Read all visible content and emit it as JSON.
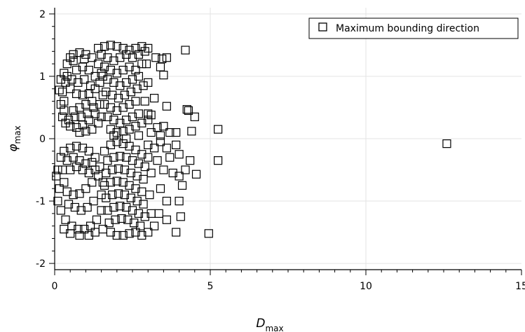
{
  "chart_data": {
    "type": "scatter",
    "xlabel": "D",
    "xlabel_sub": "max",
    "ylabel": "φ",
    "ylabel_sub": "max",
    "xlim": [
      0,
      15
    ],
    "ylim": [
      -2.1,
      2.1
    ],
    "x_ticks": [
      0,
      5,
      10,
      15
    ],
    "y_ticks": [
      -2,
      -1,
      0,
      1,
      2
    ],
    "grid": true,
    "legend_position": "top-right",
    "marker": "open-square",
    "series": [
      {
        "name": "Maximum bounding direction",
        "points": [
          [
            0.3,
            1.05
          ],
          [
            0.4,
            1.2
          ],
          [
            0.5,
            1.3
          ],
          [
            0.6,
            1.35
          ],
          [
            0.8,
            1.38
          ],
          [
            1.0,
            1.35
          ],
          [
            1.2,
            1.3
          ],
          [
            1.4,
            1.2
          ],
          [
            1.5,
            1.05
          ],
          [
            1.45,
            0.9
          ],
          [
            1.3,
            0.8
          ],
          [
            1.1,
            0.72
          ],
          [
            0.9,
            0.7
          ],
          [
            0.7,
            0.72
          ],
          [
            0.5,
            0.8
          ],
          [
            0.35,
            0.9
          ],
          [
            0.25,
            0.75
          ],
          [
            0.2,
            0.55
          ],
          [
            0.25,
            0.35
          ],
          [
            0.35,
            0.25
          ],
          [
            0.5,
            0.2
          ],
          [
            0.7,
            0.18
          ],
          [
            0.9,
            0.22
          ],
          [
            1.1,
            0.3
          ],
          [
            1.3,
            0.4
          ],
          [
            1.45,
            0.55
          ],
          [
            0.3,
            0.6
          ],
          [
            0.6,
            0.45
          ],
          [
            0.8,
            0.5
          ],
          [
            1.0,
            0.55
          ],
          [
            1.2,
            0.6
          ],
          [
            0.4,
            1.0
          ],
          [
            0.7,
            1.1
          ],
          [
            0.9,
            1.15
          ],
          [
            1.1,
            1.1
          ],
          [
            1.3,
            1.0
          ],
          [
            0.55,
            0.95
          ],
          [
            0.75,
            0.9
          ],
          [
            0.95,
            0.95
          ],
          [
            1.15,
            0.85
          ],
          [
            0.45,
            0.3
          ],
          [
            0.65,
            0.35
          ],
          [
            0.85,
            0.35
          ],
          [
            1.05,
            0.4
          ],
          [
            1.25,
            0.5
          ],
          [
            0.3,
            0.45
          ],
          [
            0.2,
            0.95
          ],
          [
            0.15,
            0.78
          ],
          [
            1.55,
            0.7
          ],
          [
            1.5,
            0.35
          ],
          [
            1.4,
            0.25
          ],
          [
            1.2,
            0.15
          ],
          [
            1.0,
            0.12
          ],
          [
            0.8,
            0.1
          ],
          [
            0.6,
            1.25
          ],
          [
            0.95,
            1.28
          ],
          [
            1.4,
            1.45
          ],
          [
            1.6,
            1.48
          ],
          [
            1.8,
            1.5
          ],
          [
            2.0,
            1.48
          ],
          [
            2.2,
            1.45
          ],
          [
            2.4,
            1.42
          ],
          [
            2.6,
            1.45
          ],
          [
            2.8,
            1.48
          ],
          [
            1.5,
            1.35
          ],
          [
            1.7,
            1.3
          ],
          [
            1.9,
            1.25
          ],
          [
            2.1,
            1.3
          ],
          [
            2.3,
            1.35
          ],
          [
            2.5,
            1.3
          ],
          [
            2.7,
            1.35
          ],
          [
            2.9,
            1.4
          ],
          [
            1.6,
            1.15
          ],
          [
            1.8,
            1.1
          ],
          [
            2.0,
            1.05
          ],
          [
            2.2,
            1.1
          ],
          [
            2.4,
            1.15
          ],
          [
            2.6,
            1.1
          ],
          [
            2.8,
            1.2
          ],
          [
            3.0,
            1.45
          ],
          [
            1.7,
            0.95
          ],
          [
            1.9,
            0.9
          ],
          [
            2.1,
            0.85
          ],
          [
            2.3,
            0.9
          ],
          [
            2.5,
            0.95
          ],
          [
            2.7,
            1.0
          ],
          [
            1.65,
            0.75
          ],
          [
            1.85,
            0.7
          ],
          [
            2.05,
            0.65
          ],
          [
            2.25,
            0.7
          ],
          [
            2.45,
            0.75
          ],
          [
            2.65,
            0.8
          ],
          [
            2.85,
            0.85
          ],
          [
            1.6,
            0.55
          ],
          [
            1.8,
            0.5
          ],
          [
            2.0,
            0.45
          ],
          [
            2.2,
            0.5
          ],
          [
            2.4,
            0.55
          ],
          [
            2.6,
            0.6
          ],
          [
            1.7,
            0.35
          ],
          [
            1.9,
            0.3
          ],
          [
            2.1,
            0.25
          ],
          [
            2.3,
            0.3
          ],
          [
            2.5,
            0.35
          ],
          [
            2.7,
            0.4
          ],
          [
            1.8,
            0.15
          ],
          [
            2.0,
            0.1
          ],
          [
            2.2,
            0.12
          ],
          [
            2.4,
            0.15
          ],
          [
            2.6,
            0.2
          ],
          [
            2.8,
            0.25
          ],
          [
            3.0,
            0.3
          ],
          [
            1.9,
            0.05
          ],
          [
            2.3,
            0.0
          ],
          [
            2.7,
            0.05
          ],
          [
            3.1,
            0.1
          ],
          [
            2.9,
            0.6
          ],
          [
            3.0,
            0.9
          ],
          [
            2.95,
            1.2
          ],
          [
            1.55,
            1.0
          ],
          [
            3.2,
            0.65
          ],
          [
            3.0,
            0.4
          ],
          [
            3.1,
            0.38
          ],
          [
            3.3,
            0.18
          ],
          [
            3.5,
            0.2
          ],
          [
            3.4,
            0.05
          ],
          [
            3.7,
            0.1
          ],
          [
            3.9,
            0.1
          ],
          [
            3.25,
            1.3
          ],
          [
            3.4,
            1.15
          ],
          [
            3.45,
            1.28
          ],
          [
            3.6,
            1.3
          ],
          [
            3.5,
            1.02
          ],
          [
            3.6,
            0.52
          ],
          [
            4.2,
            1.42
          ],
          [
            4.3,
            0.45
          ],
          [
            4.25,
            0.47
          ],
          [
            4.5,
            0.35
          ],
          [
            4.4,
            0.12
          ],
          [
            5.25,
            0.15
          ],
          [
            0.2,
            -0.3
          ],
          [
            0.3,
            -0.2
          ],
          [
            0.5,
            -0.15
          ],
          [
            0.7,
            -0.12
          ],
          [
            0.9,
            -0.15
          ],
          [
            1.1,
            -0.2
          ],
          [
            1.3,
            -0.3
          ],
          [
            1.45,
            -0.45
          ],
          [
            0.25,
            -0.5
          ],
          [
            0.3,
            -0.7
          ],
          [
            0.4,
            -0.85
          ],
          [
            0.6,
            -0.9
          ],
          [
            0.8,
            -0.88
          ],
          [
            1.0,
            -0.8
          ],
          [
            1.2,
            -0.7
          ],
          [
            1.4,
            -0.6
          ],
          [
            0.15,
            -0.8
          ],
          [
            0.1,
            -1.0
          ],
          [
            0.2,
            -1.15
          ],
          [
            0.35,
            -1.3
          ],
          [
            0.55,
            -1.4
          ],
          [
            0.75,
            -1.45
          ],
          [
            0.95,
            -1.45
          ],
          [
            1.15,
            -1.4
          ],
          [
            1.35,
            -1.3
          ],
          [
            1.5,
            -1.15
          ],
          [
            0.45,
            -1.05
          ],
          [
            0.65,
            -1.1
          ],
          [
            0.85,
            -1.15
          ],
          [
            1.05,
            -1.1
          ],
          [
            1.25,
            -1.0
          ],
          [
            0.5,
            -0.5
          ],
          [
            0.7,
            -0.45
          ],
          [
            0.9,
            -0.5
          ],
          [
            1.1,
            -0.55
          ],
          [
            1.3,
            -0.5
          ],
          [
            0.4,
            -0.35
          ],
          [
            0.6,
            -0.3
          ],
          [
            0.8,
            -0.35
          ],
          [
            1.0,
            -0.4
          ],
          [
            1.2,
            -0.38
          ],
          [
            0.3,
            -1.45
          ],
          [
            0.5,
            -1.52
          ],
          [
            0.8,
            -1.55
          ],
          [
            1.1,
            -1.55
          ],
          [
            1.3,
            -1.5
          ],
          [
            0.05,
            -0.6
          ],
          [
            0.1,
            -0.5
          ],
          [
            1.5,
            -0.9
          ],
          [
            1.55,
            -0.7
          ],
          [
            1.6,
            -0.2
          ],
          [
            1.8,
            -0.1
          ],
          [
            2.0,
            -0.05
          ],
          [
            2.2,
            -0.08
          ],
          [
            2.4,
            -0.12
          ],
          [
            2.6,
            -0.18
          ],
          [
            2.8,
            -0.25
          ],
          [
            1.7,
            -0.35
          ],
          [
            1.9,
            -0.3
          ],
          [
            2.1,
            -0.28
          ],
          [
            2.3,
            -0.3
          ],
          [
            2.5,
            -0.35
          ],
          [
            2.7,
            -0.4
          ],
          [
            2.9,
            -0.45
          ],
          [
            1.65,
            -0.55
          ],
          [
            1.85,
            -0.5
          ],
          [
            2.05,
            -0.48
          ],
          [
            2.25,
            -0.5
          ],
          [
            2.45,
            -0.55
          ],
          [
            2.65,
            -0.6
          ],
          [
            2.85,
            -0.65
          ],
          [
            1.6,
            -0.75
          ],
          [
            1.8,
            -0.7
          ],
          [
            2.0,
            -0.68
          ],
          [
            2.2,
            -0.7
          ],
          [
            2.4,
            -0.75
          ],
          [
            2.6,
            -0.8
          ],
          [
            2.8,
            -0.85
          ],
          [
            1.65,
            -0.95
          ],
          [
            1.85,
            -0.9
          ],
          [
            2.05,
            -0.88
          ],
          [
            2.25,
            -0.9
          ],
          [
            2.45,
            -0.95
          ],
          [
            2.65,
            -1.0
          ],
          [
            2.85,
            -1.05
          ],
          [
            1.7,
            -1.15
          ],
          [
            1.9,
            -1.1
          ],
          [
            2.1,
            -1.08
          ],
          [
            2.3,
            -1.1
          ],
          [
            2.5,
            -1.15
          ],
          [
            2.7,
            -1.2
          ],
          [
            2.9,
            -1.25
          ],
          [
            1.75,
            -1.35
          ],
          [
            1.95,
            -1.3
          ],
          [
            2.15,
            -1.28
          ],
          [
            2.35,
            -1.3
          ],
          [
            2.55,
            -1.35
          ],
          [
            2.75,
            -1.4
          ],
          [
            1.8,
            -1.5
          ],
          [
            2.0,
            -1.55
          ],
          [
            2.2,
            -1.55
          ],
          [
            2.4,
            -1.52
          ],
          [
            2.6,
            -1.5
          ],
          [
            2.8,
            -1.55
          ],
          [
            3.0,
            -1.5
          ],
          [
            3.0,
            -0.3
          ],
          [
            3.1,
            -0.55
          ],
          [
            3.05,
            -0.9
          ],
          [
            3.1,
            -1.2
          ],
          [
            3.2,
            -1.4
          ],
          [
            1.55,
            -1.45
          ],
          [
            3.0,
            -0.1
          ],
          [
            3.2,
            -0.15
          ],
          [
            3.4,
            -0.05
          ],
          [
            3.6,
            -0.15
          ],
          [
            3.3,
            -0.35
          ],
          [
            3.5,
            -0.5
          ],
          [
            3.7,
            -0.3
          ],
          [
            3.8,
            -0.55
          ],
          [
            3.4,
            -0.8
          ],
          [
            3.6,
            -1.0
          ],
          [
            3.35,
            -1.2
          ],
          [
            3.6,
            -1.3
          ],
          [
            3.9,
            -1.5
          ],
          [
            4.0,
            -0.6
          ],
          [
            4.1,
            -0.75
          ],
          [
            4.0,
            -1.0
          ],
          [
            4.05,
            -1.25
          ],
          [
            4.2,
            -0.5
          ],
          [
            4.35,
            -0.35
          ],
          [
            4.0,
            -0.25
          ],
          [
            3.9,
            -0.1
          ],
          [
            4.55,
            -0.57
          ],
          [
            4.95,
            -1.52
          ],
          [
            5.25,
            -0.35
          ],
          [
            12.6,
            -0.08
          ]
        ]
      }
    ]
  }
}
